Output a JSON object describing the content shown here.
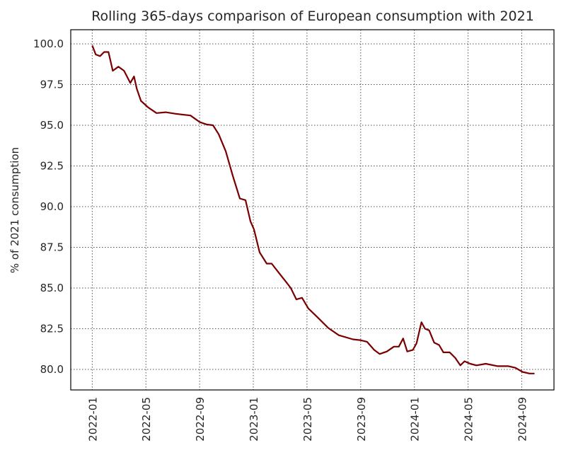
{
  "chart_data": {
    "type": "line",
    "title": "Rolling 365-days comparison of European consumption with 2021",
    "xlabel": "",
    "ylabel": "% of 2021 consumption",
    "x_unit": "months since 2022-01",
    "xlim": [
      -1.6,
      34.4
    ],
    "ylim": [
      78.74,
      100.87
    ],
    "grid": true,
    "x_ticks": [
      {
        "value": 0,
        "label": "2022-01"
      },
      {
        "value": 4,
        "label": "2022-05"
      },
      {
        "value": 8,
        "label": "2022-09"
      },
      {
        "value": 12,
        "label": "2023-01"
      },
      {
        "value": 16,
        "label": "2023-05"
      },
      {
        "value": 20,
        "label": "2023-09"
      },
      {
        "value": 24,
        "label": "2024-01"
      },
      {
        "value": 28,
        "label": "2024-05"
      },
      {
        "value": 32,
        "label": "2024-09"
      }
    ],
    "y_ticks": [
      {
        "value": 80.0,
        "label": "80.0"
      },
      {
        "value": 82.5,
        "label": "82.5"
      },
      {
        "value": 85.0,
        "label": "85.0"
      },
      {
        "value": 87.5,
        "label": "87.5"
      },
      {
        "value": 90.0,
        "label": "90.0"
      },
      {
        "value": 92.5,
        "label": "92.5"
      },
      {
        "value": 95.0,
        "label": "95.0"
      },
      {
        "value": 97.5,
        "label": "97.5"
      },
      {
        "value": 100.0,
        "label": "100.0"
      }
    ],
    "series": [
      {
        "name": "consumption",
        "color": "#7a0000",
        "x": [
          0,
          0.26,
          0.58,
          0.89,
          1.21,
          1.53,
          1.95,
          2.37,
          2.84,
          3.11,
          3.32,
          3.63,
          4.16,
          4.79,
          5.47,
          6.26,
          7.32,
          8,
          8.53,
          9,
          9.42,
          9.95,
          10.47,
          11,
          11.42,
          11.79,
          12.05,
          12.47,
          13,
          13.37,
          13.89,
          14.42,
          14.79,
          15.21,
          15.63,
          16.1,
          16.79,
          17.58,
          18.37,
          19.42,
          19.95,
          20.47,
          21,
          21.42,
          21.95,
          22.47,
          22.84,
          23.16,
          23.47,
          23.89,
          24.16,
          24.53,
          24.79,
          25.1,
          25.47,
          25.84,
          26.16,
          26.63,
          27.05,
          27.42,
          27.74,
          28.16,
          28.63,
          29.32,
          30.21,
          31,
          31.53,
          32.05,
          32.58,
          32.95
        ],
        "values": [
          99.9,
          99.35,
          99.25,
          99.5,
          99.5,
          98.35,
          98.6,
          98.35,
          97.6,
          98.0,
          97.25,
          96.5,
          96.1,
          95.75,
          95.8,
          95.7,
          95.6,
          95.2,
          95.05,
          95.0,
          94.45,
          93.4,
          91.9,
          90.5,
          90.4,
          89.1,
          88.6,
          87.2,
          86.5,
          86.5,
          85.95,
          85.4,
          85.0,
          84.3,
          84.4,
          83.75,
          83.2,
          82.55,
          82.1,
          81.85,
          81.8,
          81.7,
          81.2,
          80.95,
          81.1,
          81.4,
          81.4,
          81.9,
          81.1,
          81.2,
          81.6,
          82.9,
          82.5,
          82.4,
          81.65,
          81.5,
          81.05,
          81.05,
          80.7,
          80.25,
          80.5,
          80.35,
          80.25,
          80.35,
          80.2,
          80.2,
          80.1,
          79.85,
          79.75,
          79.75
        ]
      }
    ]
  }
}
